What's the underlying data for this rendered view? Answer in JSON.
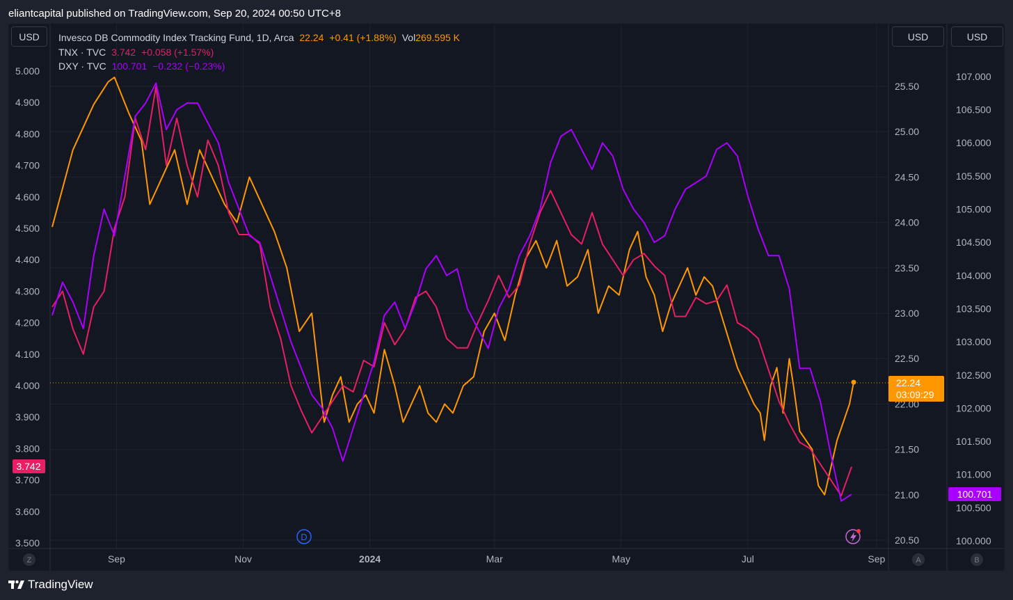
{
  "header": {
    "publisher": "eliantcapital published on TradingView.com, Sep 20, 2024 00:50 UTC+8"
  },
  "currency_buttons": {
    "left": "USD",
    "right_a": "USD",
    "right_b": "USD"
  },
  "legend": {
    "series1": {
      "name": "Invesco DB Commodity Index Tracking Fund, 1D, Arca",
      "last": "22.24",
      "change": "+0.41 (+1.88%)",
      "vol_label": "Vol",
      "vol_value": "269.595 K"
    },
    "series2": {
      "name": "TNX · TVC",
      "last": "3.742",
      "change": "+0.058 (+1.57%)"
    },
    "series3": {
      "name": "DXY · TVC",
      "last": "100.701",
      "change": "−0.232 (−0.23%)"
    }
  },
  "colors": {
    "dbc": "#ff9800",
    "tnx": "#e91e63",
    "dxy": "#aa00ff",
    "grid": "#1f2330",
    "background": "#131722",
    "axis_text": "#b2b5be"
  },
  "axes": {
    "left_ticks": [
      "3.500",
      "3.600",
      "3.700",
      "3.800",
      "3.900",
      "4.000",
      "4.100",
      "4.200",
      "4.300",
      "4.400",
      "4.500",
      "4.600",
      "4.700",
      "4.800",
      "4.900",
      "5.000"
    ],
    "right_a_ticks": [
      "20.50",
      "21.00",
      "21.50",
      "22.00",
      "22.50",
      "23.00",
      "23.50",
      "24.00",
      "24.50",
      "25.00",
      "25.50"
    ],
    "right_b_ticks": [
      "100.000",
      "100.500",
      "101.000",
      "101.500",
      "102.000",
      "102.500",
      "103.000",
      "103.500",
      "104.000",
      "104.500",
      "105.000",
      "105.500",
      "106.000",
      "106.500",
      "107.000"
    ],
    "x_ticks": [
      "Sep",
      "Nov",
      "2024",
      "Mar",
      "May",
      "Jul",
      "Sep"
    ],
    "corner_left": "Z",
    "corner_a": "A",
    "corner_b": "B"
  },
  "badges": {
    "tnx_last": "3.742",
    "dbc_last": "22.24",
    "dbc_countdown": "03:09:29",
    "dxy_last": "100.701",
    "dividend_marker": "D"
  },
  "chart_data": {
    "type": "line",
    "x_range": [
      "2023-08-01",
      "2024-09-19"
    ],
    "series": [
      {
        "name": "Invesco DB Commodity Index Tracking Fund, 1D, Arca",
        "axis": "right_a",
        "values": [
          [
            0,
            23.95
          ],
          [
            10,
            24.8
          ],
          [
            20,
            25.3
          ],
          [
            27,
            25.55
          ],
          [
            30,
            25.6
          ],
          [
            37,
            25.2
          ],
          [
            43,
            24.9
          ],
          [
            47,
            24.2
          ],
          [
            53,
            24.5
          ],
          [
            59,
            24.8
          ],
          [
            65,
            24.2
          ],
          [
            71,
            24.8
          ],
          [
            77,
            24.5
          ],
          [
            83,
            24.2
          ],
          [
            89,
            24.0
          ],
          [
            95,
            24.5
          ],
          [
            101,
            24.2
          ],
          [
            107,
            23.9
          ],
          [
            113,
            23.5
          ],
          [
            119,
            22.8
          ],
          [
            125,
            23.0
          ],
          [
            129,
            22.2
          ],
          [
            131,
            21.8
          ],
          [
            135,
            22.1
          ],
          [
            139,
            22.3
          ],
          [
            143,
            21.8
          ],
          [
            147,
            22.0
          ],
          [
            151,
            22.1
          ],
          [
            155,
            21.9
          ],
          [
            160,
            22.6
          ],
          [
            165,
            22.2
          ],
          [
            169,
            21.8
          ],
          [
            173,
            22.0
          ],
          [
            177,
            22.2
          ],
          [
            181,
            21.9
          ],
          [
            185,
            21.8
          ],
          [
            189,
            22.0
          ],
          [
            193,
            21.9
          ],
          [
            198,
            22.2
          ],
          [
            203,
            22.3
          ],
          [
            208,
            22.8
          ],
          [
            213,
            23.0
          ],
          [
            218,
            22.7
          ],
          [
            223,
            23.2
          ],
          [
            228,
            23.6
          ],
          [
            233,
            23.8
          ],
          [
            238,
            23.5
          ],
          [
            243,
            23.8
          ],
          [
            248,
            23.3
          ],
          [
            253,
            23.4
          ],
          [
            258,
            23.7
          ],
          [
            263,
            23.0
          ],
          [
            268,
            23.3
          ],
          [
            273,
            23.2
          ],
          [
            278,
            23.7
          ],
          [
            282,
            23.9
          ],
          [
            286,
            23.4
          ],
          [
            290,
            23.2
          ],
          [
            294,
            22.8
          ],
          [
            298,
            23.1
          ],
          [
            302,
            23.3
          ],
          [
            306,
            23.5
          ],
          [
            310,
            23.2
          ],
          [
            314,
            23.4
          ],
          [
            318,
            23.3
          ],
          [
            322,
            23.0
          ],
          [
            326,
            22.7
          ],
          [
            330,
            22.4
          ],
          [
            334,
            22.2
          ],
          [
            338,
            22.0
          ],
          [
            341,
            21.9
          ],
          [
            343,
            21.6
          ],
          [
            346,
            22.2
          ],
          [
            349,
            22.4
          ],
          [
            352,
            21.9
          ],
          [
            355,
            22.5
          ],
          [
            357,
            22.2
          ],
          [
            360,
            21.7
          ],
          [
            363,
            21.6
          ],
          [
            366,
            21.5
          ],
          [
            369,
            21.1
          ],
          [
            372,
            21.0
          ],
          [
            375,
            21.3
          ],
          [
            378,
            21.6
          ],
          [
            381,
            21.8
          ],
          [
            384,
            22.0
          ],
          [
            386,
            22.24
          ]
        ]
      },
      {
        "name": "TNX · TVC",
        "axis": "left",
        "values": [
          [
            0,
            4.25
          ],
          [
            5,
            4.3
          ],
          [
            10,
            4.18
          ],
          [
            15,
            4.1
          ],
          [
            20,
            4.25
          ],
          [
            25,
            4.3
          ],
          [
            30,
            4.5
          ],
          [
            35,
            4.6
          ],
          [
            40,
            4.85
          ],
          [
            45,
            4.75
          ],
          [
            50,
            4.95
          ],
          [
            55,
            4.7
          ],
          [
            60,
            4.85
          ],
          [
            65,
            4.7
          ],
          [
            70,
            4.6
          ],
          [
            75,
            4.78
          ],
          [
            80,
            4.7
          ],
          [
            85,
            4.55
          ],
          [
            90,
            4.48
          ],
          [
            95,
            4.48
          ],
          [
            100,
            4.45
          ],
          [
            105,
            4.25
          ],
          [
            110,
            4.15
          ],
          [
            115,
            4.0
          ],
          [
            120,
            3.92
          ],
          [
            125,
            3.85
          ],
          [
            130,
            3.9
          ],
          [
            135,
            3.95
          ],
          [
            140,
            4.0
          ],
          [
            145,
            3.98
          ],
          [
            150,
            4.08
          ],
          [
            155,
            4.06
          ],
          [
            160,
            4.2
          ],
          [
            165,
            4.13
          ],
          [
            170,
            4.18
          ],
          [
            175,
            4.28
          ],
          [
            180,
            4.3
          ],
          [
            185,
            4.25
          ],
          [
            190,
            4.15
          ],
          [
            195,
            4.12
          ],
          [
            200,
            4.12
          ],
          [
            205,
            4.2
          ],
          [
            210,
            4.27
          ],
          [
            215,
            4.35
          ],
          [
            220,
            4.28
          ],
          [
            225,
            4.32
          ],
          [
            230,
            4.45
          ],
          [
            235,
            4.55
          ],
          [
            240,
            4.62
          ],
          [
            245,
            4.55
          ],
          [
            250,
            4.48
          ],
          [
            255,
            4.45
          ],
          [
            260,
            4.55
          ],
          [
            265,
            4.45
          ],
          [
            270,
            4.4
          ],
          [
            275,
            4.35
          ],
          [
            280,
            4.4
          ],
          [
            285,
            4.42
          ],
          [
            290,
            4.38
          ],
          [
            295,
            4.35
          ],
          [
            300,
            4.22
          ],
          [
            305,
            4.22
          ],
          [
            310,
            4.28
          ],
          [
            315,
            4.26
          ],
          [
            320,
            4.27
          ],
          [
            325,
            4.32
          ],
          [
            330,
            4.2
          ],
          [
            335,
            4.18
          ],
          [
            340,
            4.15
          ],
          [
            345,
            4.05
          ],
          [
            350,
            3.95
          ],
          [
            355,
            3.88
          ],
          [
            360,
            3.82
          ],
          [
            365,
            3.8
          ],
          [
            370,
            3.75
          ],
          [
            375,
            3.7
          ],
          [
            380,
            3.65
          ],
          [
            385,
            3.742
          ]
        ]
      },
      {
        "name": "DXY · TVC",
        "axis": "right_b",
        "values": [
          [
            0,
            103.4
          ],
          [
            5,
            103.9
          ],
          [
            10,
            103.6
          ],
          [
            15,
            103.2
          ],
          [
            20,
            104.3
          ],
          [
            25,
            105.0
          ],
          [
            30,
            104.6
          ],
          [
            35,
            105.5
          ],
          [
            40,
            106.4
          ],
          [
            45,
            106.6
          ],
          [
            50,
            106.9
          ],
          [
            55,
            106.2
          ],
          [
            60,
            106.5
          ],
          [
            65,
            106.6
          ],
          [
            70,
            106.6
          ],
          [
            75,
            106.3
          ],
          [
            80,
            106.0
          ],
          [
            85,
            105.4
          ],
          [
            90,
            105.0
          ],
          [
            95,
            104.6
          ],
          [
            100,
            104.5
          ],
          [
            105,
            104.0
          ],
          [
            110,
            103.5
          ],
          [
            115,
            103.0
          ],
          [
            120,
            102.6
          ],
          [
            125,
            102.2
          ],
          [
            130,
            102.0
          ],
          [
            135,
            101.7
          ],
          [
            140,
            101.2
          ],
          [
            145,
            101.7
          ],
          [
            150,
            102.2
          ],
          [
            155,
            102.7
          ],
          [
            160,
            103.4
          ],
          [
            165,
            103.6
          ],
          [
            170,
            103.2
          ],
          [
            175,
            103.6
          ],
          [
            180,
            104.1
          ],
          [
            185,
            104.3
          ],
          [
            190,
            104.0
          ],
          [
            195,
            104.1
          ],
          [
            200,
            103.5
          ],
          [
            205,
            103.2
          ],
          [
            210,
            102.9
          ],
          [
            215,
            103.5
          ],
          [
            220,
            103.8
          ],
          [
            225,
            104.3
          ],
          [
            230,
            104.6
          ],
          [
            235,
            105.0
          ],
          [
            240,
            105.7
          ],
          [
            245,
            106.1
          ],
          [
            250,
            106.2
          ],
          [
            255,
            105.9
          ],
          [
            260,
            105.6
          ],
          [
            265,
            106.0
          ],
          [
            270,
            105.8
          ],
          [
            275,
            105.3
          ],
          [
            280,
            105.0
          ],
          [
            285,
            104.8
          ],
          [
            290,
            104.5
          ],
          [
            295,
            104.6
          ],
          [
            300,
            105.0
          ],
          [
            305,
            105.3
          ],
          [
            310,
            105.4
          ],
          [
            315,
            105.5
          ],
          [
            320,
            105.9
          ],
          [
            325,
            106.0
          ],
          [
            330,
            105.8
          ],
          [
            335,
            105.2
          ],
          [
            340,
            104.7
          ],
          [
            345,
            104.3
          ],
          [
            350,
            104.3
          ],
          [
            355,
            103.8
          ],
          [
            360,
            102.6
          ],
          [
            365,
            102.6
          ],
          [
            370,
            102.1
          ],
          [
            375,
            101.3
          ],
          [
            380,
            100.6
          ],
          [
            385,
            100.701
          ]
        ]
      }
    ]
  }
}
